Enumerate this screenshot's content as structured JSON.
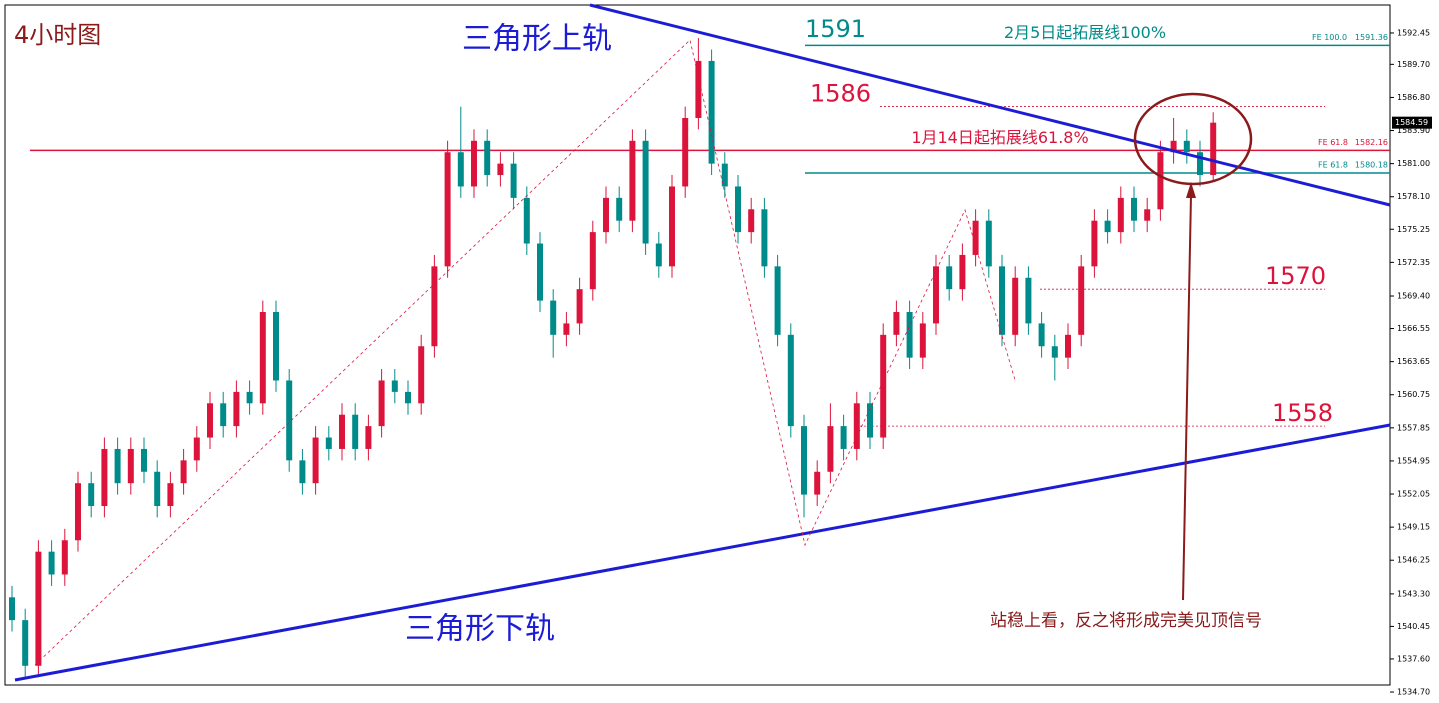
{
  "chart_data": {
    "type": "candlestick",
    "title": "4小时图",
    "up_color": "#dc143c",
    "down_color": "#008b8b",
    "open": [
      1543,
      1541,
      1537,
      1547,
      1545,
      1548,
      1553,
      1551,
      1556,
      1553,
      1556,
      1554,
      1551,
      1553,
      1555,
      1557,
      1560,
      1558,
      1561,
      1560,
      1568,
      1562,
      1555,
      1553,
      1557,
      1556,
      1559,
      1556,
      1558,
      1562,
      1561,
      1560,
      1565,
      1572,
      1582,
      1579,
      1583,
      1580,
      1581,
      1578,
      1574,
      1569,
      1566,
      1567,
      1570,
      1575,
      1578,
      1576,
      1583,
      1574,
      1572,
      1579,
      1585,
      1590,
      1581,
      1579,
      1575,
      1577,
      1572,
      1566,
      1558,
      1552,
      1554,
      1558,
      1556,
      1560,
      1557,
      1566,
      1568,
      1564,
      1567,
      1572,
      1570,
      1573,
      1576,
      1572,
      1566,
      1571,
      1567,
      1565,
      1564,
      1566,
      1572,
      1576,
      1575,
      1578,
      1576,
      1577,
      1582,
      1583,
      1582,
      1580
    ],
    "high": [
      1544,
      1542,
      1548,
      1548,
      1549,
      1554,
      1554,
      1557,
      1557,
      1557,
      1557,
      1555,
      1554,
      1556,
      1558,
      1561,
      1561,
      1562,
      1562,
      1569,
      1569,
      1563,
      1556,
      1558,
      1558,
      1560,
      1560,
      1559,
      1563,
      1563,
      1562,
      1566,
      1573,
      1583,
      1586,
      1584,
      1584,
      1582,
      1582,
      1579,
      1575,
      1570,
      1568,
      1571,
      1576,
      1579,
      1579,
      1584,
      1584,
      1575,
      1580,
      1586,
      1592,
      1591,
      1582,
      1580,
      1578,
      1578,
      1573,
      1567,
      1559,
      1555,
      1560,
      1559,
      1561,
      1561,
      1567,
      1569,
      1569,
      1568,
      1573,
      1573,
      1574,
      1577,
      1577,
      1573,
      1572,
      1572,
      1568,
      1566,
      1567,
      1573,
      1577,
      1577,
      1579,
      1579,
      1578,
      1583,
      1585,
      1584,
      1583,
      1585.5
    ],
    "low": [
      1540,
      1536,
      1536,
      1544,
      1544,
      1547,
      1550,
      1550,
      1552,
      1552,
      1553,
      1550,
      1550,
      1552,
      1554,
      1556,
      1557,
      1557,
      1559,
      1559,
      1561,
      1554,
      1552,
      1552,
      1555,
      1555,
      1555,
      1555,
      1557,
      1560,
      1559,
      1559,
      1564,
      1571,
      1578,
      1578,
      1579,
      1579,
      1577,
      1573,
      1568,
      1564,
      1565,
      1566,
      1569,
      1574,
      1575,
      1575,
      1573,
      1571,
      1571,
      1578,
      1584,
      1580,
      1578,
      1574,
      1574,
      1571,
      1565,
      1557,
      1550,
      1551,
      1553,
      1555,
      1555,
      1556,
      1556,
      1565,
      1563,
      1563,
      1566,
      1569,
      1569,
      1572,
      1571,
      1565,
      1565,
      1566,
      1564,
      1562,
      1563,
      1565,
      1571,
      1574,
      1574,
      1575,
      1575,
      1576,
      1581,
      1581,
      1579,
      1579.5
    ],
    "close": [
      1541,
      1537,
      1547,
      1545,
      1548,
      1553,
      1551,
      1556,
      1553,
      1556,
      1554,
      1551,
      1553,
      1555,
      1557,
      1560,
      1558,
      1561,
      1560,
      1568,
      1562,
      1555,
      1553,
      1557,
      1556,
      1559,
      1556,
      1558,
      1562,
      1561,
      1560,
      1565,
      1572,
      1582,
      1579,
      1583,
      1580,
      1581,
      1578,
      1574,
      1569,
      1566,
      1567,
      1570,
      1575,
      1578,
      1576,
      1583,
      1574,
      1572,
      1579,
      1585,
      1590,
      1581,
      1579,
      1575,
      1577,
      1572,
      1566,
      1558,
      1552,
      1554,
      1558,
      1556,
      1560,
      1557,
      1566,
      1568,
      1564,
      1567,
      1572,
      1570,
      1573,
      1576,
      1572,
      1566,
      1571,
      1567,
      1565,
      1564,
      1566,
      1572,
      1576,
      1575,
      1578,
      1576,
      1577,
      1582,
      1583,
      1582,
      1580,
      1584.59
    ],
    "ylim": [
      1534.44,
      1594.9
    ],
    "yticks": [
      1592.45,
      {
        "value": 1589.7,
        "label": "1589.70"
      },
      {
        "value": 1586.8,
        "label": "1586.80"
      },
      {
        "value": 1583.9,
        "label": "1583.90"
      },
      {
        "value": 1581.0,
        "label": "1581.00"
      },
      {
        "value": 1578.1,
        "label": "1578.10"
      },
      1575.25,
      1572.35,
      {
        "value": 1569.4,
        "label": "1569.40"
      },
      1566.55,
      1563.65,
      1560.75,
      1557.85,
      1554.95,
      1552.05,
      1549.15,
      1546.25,
      {
        "value": 1543.3,
        "label": "1543.30"
      },
      1540.45,
      {
        "value": 1537.6,
        "label": "1537.60"
      },
      {
        "value": 1534.7,
        "label": "1534.70"
      }
    ],
    "fe_lines": [
      {
        "name": "FE 100.0",
        "value": 1591.36,
        "color": "#008b8b",
        "note": "2月5日起拓展线100%"
      },
      {
        "name": "FE 61.8",
        "value": 1582.16,
        "color": "#dc143c",
        "note": "1月14日起拓展线61.8%"
      },
      {
        "name": "FE 61.8",
        "value": 1580.18,
        "color": "#008b8b"
      }
    ],
    "levels": [
      1591,
      1586,
      1570,
      1558
    ],
    "annotations": {
      "upper": "三角形上轨",
      "lower": "三角形下轨",
      "comment": "站稳上看，反之将形成完美见顶信号"
    }
  }
}
